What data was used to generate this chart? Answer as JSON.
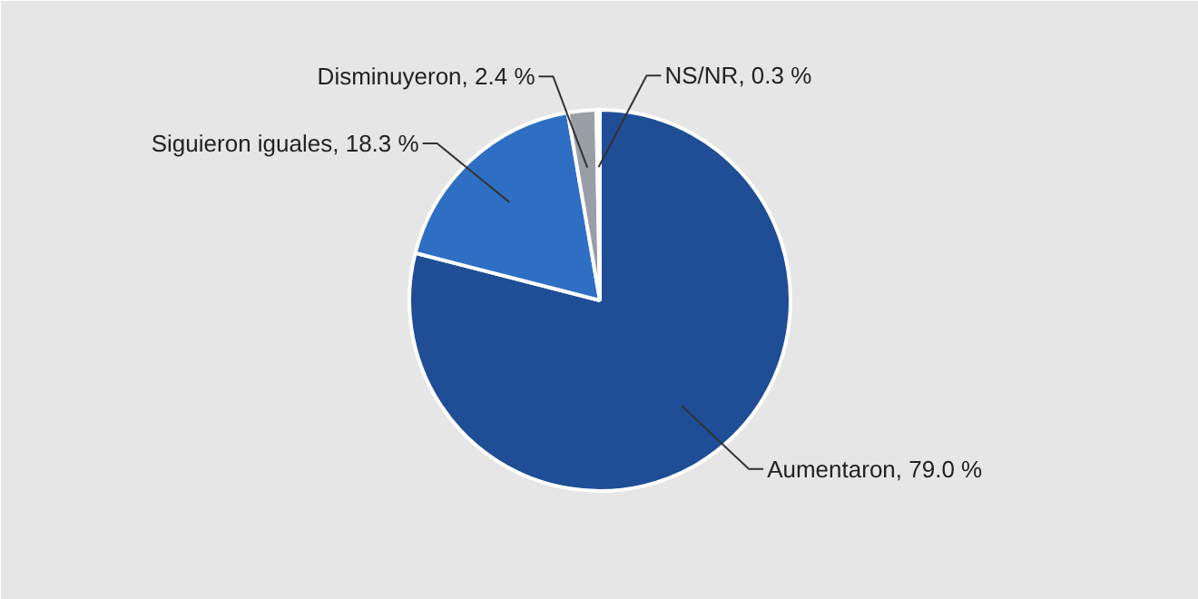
{
  "chart_data": {
    "type": "pie",
    "categories": [
      "Aumentaron",
      "Siguieron iguales",
      "Disminuyeron",
      "NS/NR"
    ],
    "values": [
      79.0,
      18.3,
      2.4,
      0.3
    ],
    "colors": [
      "#1f4e96",
      "#2e6fc4",
      "#9a9ea6",
      "#eceef2"
    ],
    "value_labels": [
      "79.0 %",
      "18.3 %",
      "2.4 %",
      "0.3 %"
    ]
  }
}
